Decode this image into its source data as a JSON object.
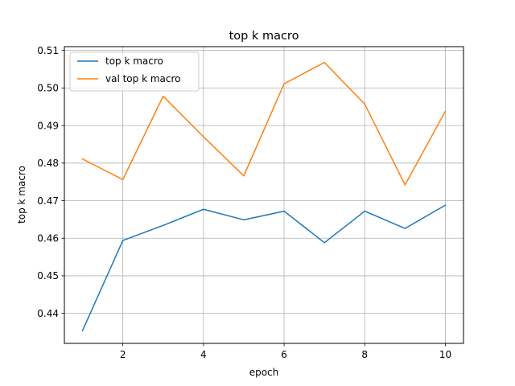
{
  "chart_data": {
    "type": "line",
    "title": "top k macro",
    "xlabel": "epoch",
    "ylabel": "top k macro",
    "x": [
      1,
      2,
      3,
      4,
      5,
      6,
      7,
      8,
      9,
      10
    ],
    "xlim": [
      0.55,
      10.45
    ],
    "ylim": [
      0.432,
      0.511
    ],
    "xticks": [
      2,
      4,
      6,
      8,
      10
    ],
    "xtick_labels": [
      "2",
      "4",
      "6",
      "8",
      "10"
    ],
    "yticks": [
      0.44,
      0.45,
      0.46,
      0.47,
      0.48,
      0.49,
      0.5,
      0.51
    ],
    "ytick_labels": [
      "0.44",
      "0.45",
      "0.46",
      "0.47",
      "0.48",
      "0.49",
      "0.50",
      "0.51"
    ],
    "grid": true,
    "legend_position": "top-left",
    "series": [
      {
        "name": "top k macro",
        "color": "#1f77b4",
        "values": [
          0.4354,
          0.4594,
          0.4634,
          0.4677,
          0.4649,
          0.4672,
          0.4588,
          0.4672,
          0.4626,
          0.4688
        ]
      },
      {
        "name": "val top k macro",
        "color": "#ff7f0e",
        "values": [
          0.4811,
          0.4756,
          0.4978,
          0.487,
          0.4766,
          0.5011,
          0.5068,
          0.4957,
          0.4742,
          0.4938
        ]
      }
    ]
  }
}
